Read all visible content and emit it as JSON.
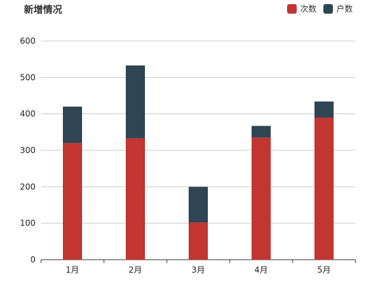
{
  "chart_data": {
    "type": "bar",
    "stacked": true,
    "title": "新增情况",
    "categories": [
      "1月",
      "2月",
      "3月",
      "4月",
      "5月"
    ],
    "series": [
      {
        "name": "次数",
        "color": "#c23531",
        "values": [
          320,
          333,
          102,
          335,
          390
        ]
      },
      {
        "name": "户数",
        "color": "#2f4554",
        "values": [
          100,
          200,
          98,
          32,
          44
        ]
      }
    ],
    "ylim": [
      0,
      600
    ],
    "yticks": [
      0,
      100,
      200,
      300,
      400,
      500,
      600
    ],
    "grid": true,
    "legend": "top-right"
  }
}
